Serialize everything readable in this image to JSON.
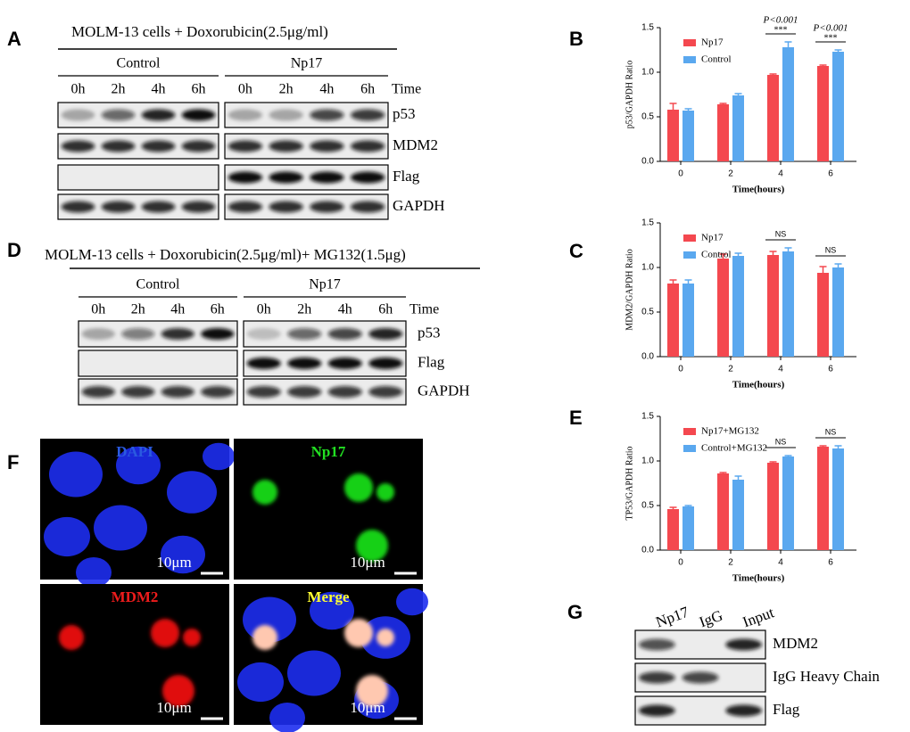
{
  "panel_labels": [
    "A",
    "B",
    "C",
    "D",
    "E",
    "F",
    "G"
  ],
  "blot_a": {
    "title": "MOLM-13 cells + Doxorubicin(2.5μg/ml)",
    "groups": [
      {
        "name": "Control",
        "lanes": [
          "0h",
          "2h",
          "4h",
          "6h"
        ]
      },
      {
        "name": "Np17",
        "lanes": [
          "0h",
          "2h",
          "4h",
          "6h"
        ]
      }
    ],
    "axis_label": "Time",
    "rows": [
      "p53",
      "MDM2",
      "Flag",
      "GAPDH"
    ]
  },
  "blot_d": {
    "title": "MOLM-13 cells + Doxorubicin(2.5μg/ml)+ MG132(1.5μg)",
    "groups": [
      {
        "name": "Control",
        "lanes": [
          "0h",
          "2h",
          "4h",
          "6h"
        ]
      },
      {
        "name": "Np17",
        "lanes": [
          "0h",
          "2h",
          "4h",
          "6h"
        ]
      }
    ],
    "axis_label": "Time",
    "rows": [
      "p53",
      "Flag",
      "GAPDH"
    ]
  },
  "microscopy_f": {
    "images": [
      {
        "label": "DAPI",
        "scale": "10μm"
      },
      {
        "label": "Np17",
        "scale": "10μm"
      },
      {
        "label": "MDM2",
        "scale": "10μm"
      },
      {
        "label": "Merge",
        "scale": "10μm"
      }
    ]
  },
  "blot_g": {
    "lanes": [
      "Np17",
      "IgG",
      "Input"
    ],
    "rows": [
      "MDM2",
      "IgG Heavy Chain",
      "Flag"
    ]
  },
  "chart_data": [
    {
      "type": "bar",
      "y_label": "p53/GAPDH Ratio",
      "x_label": "Time(hours)",
      "categories": [
        "0",
        "2",
        "4",
        "6"
      ],
      "series": [
        {
          "name": "Np17",
          "color": "#f4484f",
          "values": [
            0.58,
            0.64,
            0.97,
            1.07
          ],
          "errors": [
            0.07,
            0.01,
            0.01,
            0.01
          ]
        },
        {
          "name": "Control",
          "color": "#5aa8ef",
          "values": [
            0.57,
            0.74,
            1.28,
            1.23
          ],
          "errors": [
            0.02,
            0.02,
            0.06,
            0.02
          ]
        }
      ],
      "ylim": [
        0,
        1.5
      ],
      "yticks": [
        {
          "value": 0,
          "label": "0.0"
        },
        {
          "value": 0.5,
          "label": "0.5"
        },
        {
          "value": 1,
          "label": "1.0"
        },
        {
          "value": 1.5,
          "label": "1.5"
        }
      ],
      "annotations": [
        null,
        null,
        {
          "p": "P<0.001",
          "mark": "***"
        },
        {
          "p": "P<0.001",
          "mark": "***"
        }
      ]
    },
    {
      "type": "bar",
      "y_label": "MDM2/GAPDH Ratio",
      "x_label": "Time(hours)",
      "categories": [
        "0",
        "2",
        "4",
        "6"
      ],
      "series": [
        {
          "name": "Np17",
          "color": "#f4484f",
          "values": [
            0.82,
            1.1,
            1.14,
            0.94
          ],
          "errors": [
            0.04,
            0.05,
            0.04,
            0.07
          ]
        },
        {
          "name": "Control",
          "color": "#5aa8ef",
          "values": [
            0.82,
            1.13,
            1.18,
            1.0
          ],
          "errors": [
            0.04,
            0.03,
            0.04,
            0.04
          ]
        }
      ],
      "ylim": [
        0,
        1.5
      ],
      "yticks": [
        {
          "value": 0,
          "label": "0.0"
        },
        {
          "value": 0.5,
          "label": "0.5"
        },
        {
          "value": 1,
          "label": "1.0"
        },
        {
          "value": 1.5,
          "label": "1.5"
        }
      ],
      "annotations": [
        null,
        null,
        "NS",
        "NS"
      ]
    },
    {
      "type": "bar",
      "y_label": "TP53/GAPDH Ratio",
      "x_label": "Time(hours)",
      "categories": [
        "0",
        "2",
        "4",
        "6"
      ],
      "series": [
        {
          "name": "Np17+MG132",
          "color": "#f4484f",
          "values": [
            0.46,
            0.86,
            0.98,
            1.16
          ],
          "errors": [
            0.02,
            0.01,
            0.01,
            0.01
          ]
        },
        {
          "name": "Control+MG132",
          "color": "#5aa8ef",
          "values": [
            0.49,
            0.79,
            1.05,
            1.14
          ],
          "errors": [
            0.01,
            0.04,
            0.01,
            0.03
          ]
        }
      ],
      "ylim": [
        0,
        1.5
      ],
      "yticks": [
        {
          "value": 0,
          "label": "0.0"
        },
        {
          "value": 0.5,
          "label": "0.5"
        },
        {
          "value": 1,
          "label": "1.0"
        },
        {
          "value": 1.5,
          "label": "1.5"
        }
      ],
      "annotations": [
        null,
        null,
        "NS",
        "NS"
      ]
    }
  ]
}
